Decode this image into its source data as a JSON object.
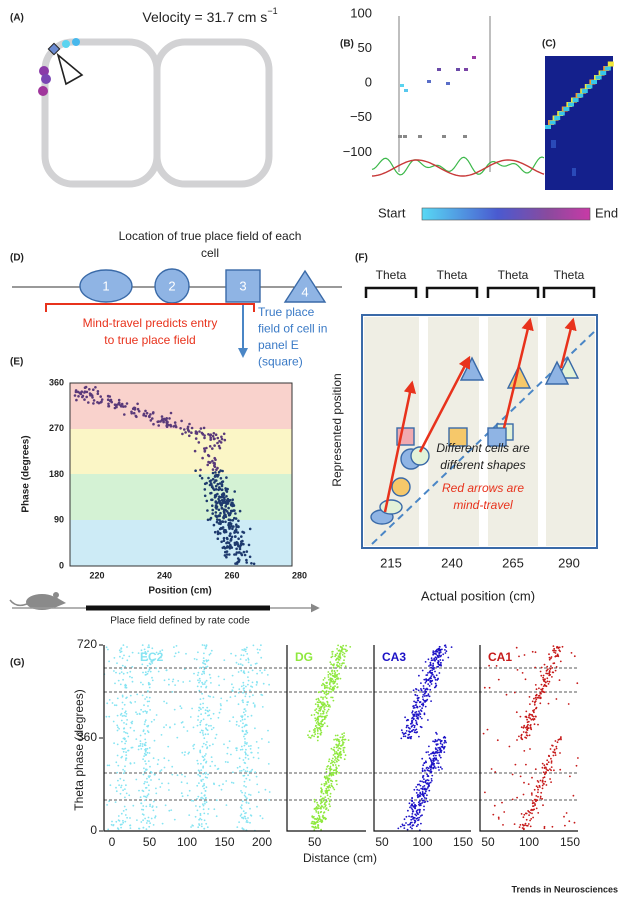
{
  "panels": {
    "A": {
      "label": "(A)",
      "title": "Velocity = 31.7 cm s",
      "title_sup": "−1"
    },
    "B": {
      "label": "(B)",
      "yticks": [
        "100",
        "50",
        "0",
        "−50",
        "−100"
      ]
    },
    "C": {
      "label": "(C)"
    },
    "colorbar": {
      "start": "Start",
      "end": "End"
    },
    "D": {
      "label": "(D)",
      "title": [
        "Location of true place field of each",
        "cell"
      ],
      "cells": [
        "1",
        "2",
        "3",
        "4"
      ],
      "note_red": [
        "Mind-travel predicts entry",
        "to true place field"
      ],
      "note_blue": [
        "True place",
        "field of cell in",
        "panel E",
        "(square)"
      ]
    },
    "E": {
      "label": "(E)",
      "y_label": "Phase (degrees)",
      "x_label": "Position (cm)",
      "yticks": [
        "360",
        "270",
        "180",
        "90",
        "0"
      ],
      "xticks": [
        "220",
        "240",
        "260",
        "280"
      ],
      "caption": "Place field defined by rate code"
    },
    "F": {
      "label": "(F)",
      "theta": [
        "Theta",
        "Theta",
        "Theta",
        "Theta"
      ],
      "y_label": "Represented position",
      "x_label": "Actual position (cm)",
      "xticks": [
        "215",
        "240",
        "265",
        "290"
      ],
      "note_black": [
        "Different cells are",
        "different shapes"
      ],
      "note_red": [
        "Red arrows are",
        "mind-travel"
      ]
    },
    "G": {
      "label": "(G)",
      "y_label": "Theta phase (degrees)",
      "x_label": "Distance (cm)",
      "yticks": [
        "720",
        "360",
        "0"
      ],
      "subpanels": [
        {
          "name": "EC2",
          "color": "#86e4f2",
          "xticks": [
            "0",
            "50",
            "100",
            "150",
            "200"
          ]
        },
        {
          "name": "DG",
          "color": "#8fe83e",
          "xticks": [
            "50"
          ]
        },
        {
          "name": "CA3",
          "color": "#1c12c6",
          "xticks": [
            "50",
            "100",
            "150"
          ]
        },
        {
          "name": "CA1",
          "color": "#c61a1a",
          "xticks": [
            "50",
            "100",
            "150"
          ]
        }
      ]
    }
  },
  "footer": "Trends in Neurosciences"
}
